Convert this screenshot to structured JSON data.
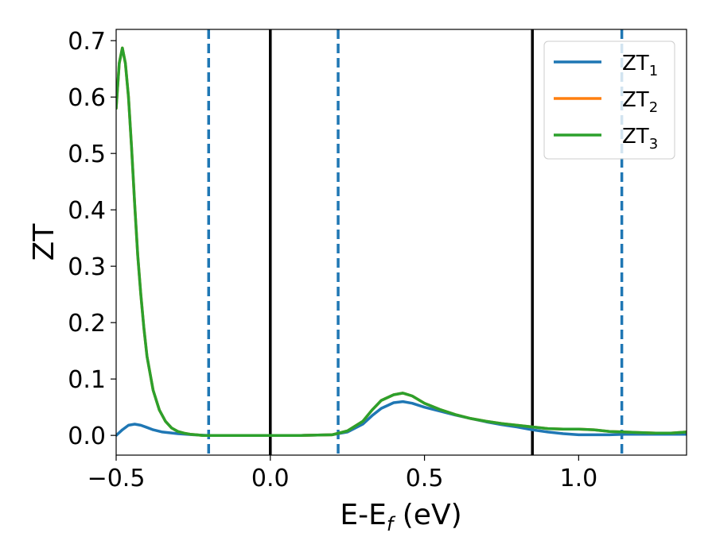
{
  "chart_data": {
    "type": "line",
    "xlabel": {
      "main": "E-E",
      "sub": "f",
      "tail": " (eV)"
    },
    "ylabel": "ZT",
    "xlim": [
      -0.5,
      1.35
    ],
    "ylim": [
      -0.035,
      0.72
    ],
    "xticks": [
      -0.5,
      0.0,
      0.5,
      1.0
    ],
    "xtick_labels": [
      "−0.5",
      "0.0",
      "0.5",
      "1.0"
    ],
    "yticks": [
      0.0,
      0.1,
      0.2,
      0.3,
      0.4,
      0.5,
      0.6,
      0.7
    ],
    "ytick_labels": [
      "0.0",
      "0.1",
      "0.2",
      "0.3",
      "0.4",
      "0.5",
      "0.6",
      "0.7"
    ],
    "grid": false,
    "legend_position": "top-right",
    "vlines_solid": [
      0.0,
      0.85
    ],
    "vlines_dashed": [
      -0.2,
      0.22,
      1.14
    ],
    "series": [
      {
        "name": "ZT",
        "name_sub": "1",
        "color": "#1f77b4",
        "x": [
          -0.5,
          -0.48,
          -0.46,
          -0.44,
          -0.42,
          -0.4,
          -0.38,
          -0.35,
          -0.3,
          -0.25,
          -0.2,
          -0.1,
          0.0,
          0.1,
          0.2,
          0.25,
          0.3,
          0.33,
          0.36,
          0.4,
          0.43,
          0.46,
          0.5,
          0.55,
          0.6,
          0.65,
          0.7,
          0.75,
          0.8,
          0.85,
          0.9,
          0.95,
          1.0,
          1.05,
          1.1,
          1.15,
          1.2,
          1.25,
          1.3,
          1.35
        ],
        "y": [
          0.0,
          0.01,
          0.018,
          0.02,
          0.018,
          0.014,
          0.01,
          0.006,
          0.003,
          0.001,
          0.0,
          0.0,
          0.0,
          0.0,
          0.001,
          0.006,
          0.02,
          0.035,
          0.048,
          0.058,
          0.06,
          0.057,
          0.05,
          0.043,
          0.036,
          0.03,
          0.024,
          0.019,
          0.015,
          0.01,
          0.006,
          0.003,
          0.001,
          0.001,
          0.001,
          0.002,
          0.002,
          0.002,
          0.002,
          0.002
        ]
      },
      {
        "name": "ZT",
        "name_sub": "2",
        "color": "#ff7f0e",
        "x": [
          -0.5,
          -0.49,
          -0.48,
          -0.47,
          -0.46,
          -0.45,
          -0.44,
          -0.43,
          -0.42,
          -0.41,
          -0.4,
          -0.38,
          -0.36,
          -0.34,
          -0.32,
          -0.3,
          -0.28,
          -0.26,
          -0.24,
          -0.22,
          -0.2,
          -0.1,
          0.0,
          0.1,
          0.2,
          0.25,
          0.3,
          0.33,
          0.36,
          0.4,
          0.43,
          0.46,
          0.5,
          0.55,
          0.6,
          0.65,
          0.7,
          0.75,
          0.8,
          0.85,
          0.9,
          0.95,
          1.0,
          1.05,
          1.1,
          1.15,
          1.2,
          1.25,
          1.3,
          1.35
        ],
        "y": [
          0.58,
          0.66,
          0.687,
          0.66,
          0.6,
          0.51,
          0.41,
          0.32,
          0.25,
          0.19,
          0.14,
          0.08,
          0.045,
          0.025,
          0.013,
          0.007,
          0.004,
          0.002,
          0.001,
          0.0,
          0.0,
          0.0,
          0.0,
          0.0,
          0.001,
          0.008,
          0.025,
          0.045,
          0.062,
          0.072,
          0.075,
          0.07,
          0.057,
          0.046,
          0.037,
          0.03,
          0.025,
          0.021,
          0.018,
          0.015,
          0.012,
          0.011,
          0.011,
          0.01,
          0.007,
          0.006,
          0.005,
          0.004,
          0.004,
          0.006
        ]
      },
      {
        "name": "ZT",
        "name_sub": "3",
        "color": "#2ca02c",
        "x": [
          -0.5,
          -0.49,
          -0.48,
          -0.47,
          -0.46,
          -0.45,
          -0.44,
          -0.43,
          -0.42,
          -0.41,
          -0.4,
          -0.38,
          -0.36,
          -0.34,
          -0.32,
          -0.3,
          -0.28,
          -0.26,
          -0.24,
          -0.22,
          -0.2,
          -0.1,
          0.0,
          0.1,
          0.2,
          0.25,
          0.3,
          0.33,
          0.36,
          0.4,
          0.43,
          0.46,
          0.5,
          0.55,
          0.6,
          0.65,
          0.7,
          0.75,
          0.8,
          0.85,
          0.9,
          0.95,
          1.0,
          1.05,
          1.1,
          1.15,
          1.2,
          1.25,
          1.3,
          1.35
        ],
        "y": [
          0.58,
          0.66,
          0.687,
          0.66,
          0.6,
          0.51,
          0.41,
          0.32,
          0.25,
          0.19,
          0.14,
          0.08,
          0.045,
          0.025,
          0.013,
          0.007,
          0.004,
          0.002,
          0.001,
          0.0,
          0.0,
          0.0,
          0.0,
          0.0,
          0.001,
          0.008,
          0.025,
          0.045,
          0.062,
          0.072,
          0.075,
          0.07,
          0.057,
          0.046,
          0.037,
          0.03,
          0.025,
          0.021,
          0.018,
          0.015,
          0.012,
          0.011,
          0.011,
          0.01,
          0.007,
          0.006,
          0.005,
          0.004,
          0.004,
          0.006
        ]
      }
    ]
  }
}
